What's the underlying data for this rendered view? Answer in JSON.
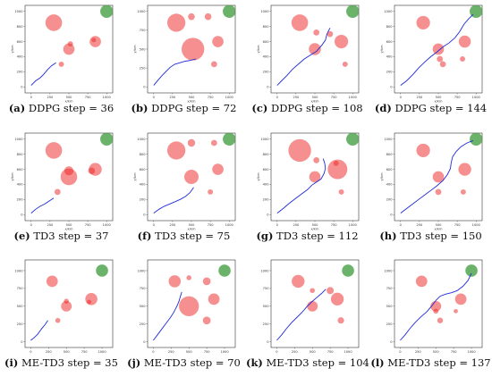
{
  "chart_data": [
    {
      "type": "scatter",
      "caption_tag": "(a)",
      "caption_text": "DDPG step = 36",
      "xlabel": "x/km",
      "ylabel": "y/km",
      "xticks": [
        0,
        250,
        500,
        750,
        1000
      ],
      "yticks": [
        0,
        200,
        400,
        600,
        800,
        1000
      ],
      "xlim": [
        -80,
        1080
      ],
      "ylim": [
        -80,
        1080
      ],
      "goal": {
        "x": 1000,
        "y": 1000,
        "r": 85
      },
      "obstacles": [
        {
          "x": 300,
          "y": 850,
          "r": 110
        },
        {
          "x": 500,
          "y": 500,
          "r": 75
        },
        {
          "x": 520,
          "y": 570,
          "r": 35
        },
        {
          "x": 850,
          "y": 600,
          "r": 75
        },
        {
          "x": 830,
          "y": 620,
          "r": 30
        },
        {
          "x": 400,
          "y": 300,
          "r": 35
        }
      ],
      "path": [
        [
          0,
          20
        ],
        [
          60,
          80
        ],
        [
          120,
          120
        ],
        [
          170,
          170
        ],
        [
          220,
          230
        ],
        [
          270,
          280
        ],
        [
          330,
          320
        ]
      ]
    },
    {
      "type": "scatter",
      "caption_tag": "(b)",
      "caption_text": "DDPG step = 72",
      "xlabel": "x/km",
      "ylabel": "y/km",
      "xticks": [
        0,
        250,
        500,
        750,
        1000
      ],
      "yticks": [
        0,
        250,
        500,
        750,
        1000
      ],
      "xlim": [
        -80,
        1080
      ],
      "ylim": [
        -80,
        1080
      ],
      "goal": {
        "x": 1000,
        "y": 1000,
        "r": 85
      },
      "obstacles": [
        {
          "x": 300,
          "y": 850,
          "r": 120
        },
        {
          "x": 500,
          "y": 930,
          "r": 45
        },
        {
          "x": 720,
          "y": 930,
          "r": 45
        },
        {
          "x": 520,
          "y": 500,
          "r": 150
        },
        {
          "x": 850,
          "y": 600,
          "r": 75
        },
        {
          "x": 800,
          "y": 300,
          "r": 40
        }
      ],
      "path": [
        [
          0,
          20
        ],
        [
          60,
          90
        ],
        [
          110,
          150
        ],
        [
          160,
          200
        ],
        [
          220,
          260
        ],
        [
          280,
          300
        ],
        [
          350,
          320
        ],
        [
          420,
          340
        ],
        [
          480,
          350
        ],
        [
          560,
          370
        ]
      ]
    },
    {
      "type": "scatter",
      "caption_tag": "(c)",
      "caption_text": "DDPG step = 108",
      "xlabel": "x/km",
      "ylabel": "y/km",
      "xticks": [
        0,
        250,
        500,
        750,
        1000
      ],
      "yticks": [
        0,
        200,
        400,
        600,
        800,
        1000
      ],
      "xlim": [
        -80,
        1080
      ],
      "ylim": [
        -80,
        1080
      ],
      "goal": {
        "x": 1000,
        "y": 1000,
        "r": 85
      },
      "obstacles": [
        {
          "x": 300,
          "y": 850,
          "r": 110
        },
        {
          "x": 520,
          "y": 720,
          "r": 40
        },
        {
          "x": 500,
          "y": 500,
          "r": 80
        },
        {
          "x": 850,
          "y": 600,
          "r": 90
        },
        {
          "x": 700,
          "y": 700,
          "r": 40
        },
        {
          "x": 900,
          "y": 300,
          "r": 35
        }
      ],
      "path": [
        [
          0,
          20
        ],
        [
          60,
          80
        ],
        [
          130,
          150
        ],
        [
          200,
          230
        ],
        [
          280,
          300
        ],
        [
          360,
          370
        ],
        [
          440,
          420
        ],
        [
          520,
          470
        ],
        [
          590,
          550
        ],
        [
          640,
          620
        ],
        [
          660,
          700
        ],
        [
          700,
          780
        ]
      ]
    },
    {
      "type": "scatter",
      "caption_tag": "(d)",
      "caption_text": "DDPG step = 144",
      "xlabel": "x/km",
      "ylabel": "y/km",
      "xticks": [
        0,
        250,
        500,
        750,
        1000
      ],
      "yticks": [
        0,
        200,
        400,
        600,
        800,
        1000
      ],
      "xlim": [
        -80,
        1080
      ],
      "ylim": [
        -80,
        1080
      ],
      "goal": {
        "x": 1000,
        "y": 1000,
        "r": 85
      },
      "obstacles": [
        {
          "x": 300,
          "y": 850,
          "r": 90
        },
        {
          "x": 500,
          "y": 500,
          "r": 75
        },
        {
          "x": 520,
          "y": 370,
          "r": 40
        },
        {
          "x": 850,
          "y": 600,
          "r": 80
        },
        {
          "x": 560,
          "y": 300,
          "r": 40
        },
        {
          "x": 820,
          "y": 370,
          "r": 35
        }
      ],
      "path": [
        [
          0,
          20
        ],
        [
          80,
          80
        ],
        [
          160,
          160
        ],
        [
          240,
          250
        ],
        [
          320,
          330
        ],
        [
          400,
          400
        ],
        [
          480,
          460
        ],
        [
          560,
          530
        ],
        [
          640,
          580
        ],
        [
          720,
          650
        ],
        [
          780,
          730
        ],
        [
          840,
          830
        ],
        [
          900,
          900
        ],
        [
          960,
          960
        ]
      ]
    },
    {
      "type": "scatter",
      "caption_tag": "(e)",
      "caption_text": "TD3 step = 37",
      "xlabel": "x/km",
      "ylabel": "y/km",
      "xticks": [
        0,
        250,
        500,
        750,
        1000
      ],
      "yticks": [
        0,
        200,
        400,
        600,
        800,
        1000
      ],
      "xlim": [
        -80,
        1080
      ],
      "ylim": [
        -80,
        1080
      ],
      "goal": {
        "x": 1000,
        "y": 1000,
        "r": 85
      },
      "obstacles": [
        {
          "x": 300,
          "y": 850,
          "r": 110
        },
        {
          "x": 500,
          "y": 500,
          "r": 110
        },
        {
          "x": 500,
          "y": 580,
          "r": 60
        },
        {
          "x": 850,
          "y": 600,
          "r": 85
        },
        {
          "x": 800,
          "y": 580,
          "r": 45
        },
        {
          "x": 350,
          "y": 300,
          "r": 40
        }
      ],
      "path": [
        [
          0,
          20
        ],
        [
          60,
          70
        ],
        [
          120,
          110
        ],
        [
          180,
          140
        ],
        [
          240,
          180
        ],
        [
          300,
          220
        ]
      ]
    },
    {
      "type": "scatter",
      "caption_tag": "(f)",
      "caption_text": "TD3 step = 75",
      "xlabel": "x/km",
      "ylabel": "y/km",
      "xticks": [
        0,
        250,
        500,
        750,
        1000
      ],
      "yticks": [
        0,
        200,
        400,
        600,
        800,
        1000
      ],
      "xlim": [
        -80,
        1080
      ],
      "ylim": [
        -80,
        1080
      ],
      "goal": {
        "x": 1000,
        "y": 1000,
        "r": 85
      },
      "obstacles": [
        {
          "x": 300,
          "y": 850,
          "r": 120
        },
        {
          "x": 500,
          "y": 950,
          "r": 50
        },
        {
          "x": 800,
          "y": 950,
          "r": 40
        },
        {
          "x": 500,
          "y": 500,
          "r": 95
        },
        {
          "x": 850,
          "y": 600,
          "r": 75
        },
        {
          "x": 750,
          "y": 300,
          "r": 35
        }
      ],
      "path": [
        [
          0,
          20
        ],
        [
          70,
          70
        ],
        [
          140,
          110
        ],
        [
          210,
          140
        ],
        [
          280,
          170
        ],
        [
          350,
          200
        ],
        [
          420,
          240
        ],
        [
          480,
          290
        ],
        [
          530,
          360
        ]
      ]
    },
    {
      "type": "scatter",
      "caption_tag": "(g)",
      "caption_text": "TD3 step = 112",
      "xlabel": "x/km",
      "ylabel": "y/km",
      "xticks": [
        0,
        250,
        500,
        750,
        1000
      ],
      "yticks": [
        0,
        200,
        400,
        600,
        800,
        1000
      ],
      "xlim": [
        -80,
        1080
      ],
      "ylim": [
        -80,
        1080
      ],
      "goal": {
        "x": 1000,
        "y": 1000,
        "r": 85
      },
      "obstacles": [
        {
          "x": 300,
          "y": 850,
          "r": 150
        },
        {
          "x": 500,
          "y": 500,
          "r": 75
        },
        {
          "x": 520,
          "y": 720,
          "r": 40
        },
        {
          "x": 800,
          "y": 600,
          "r": 130
        },
        {
          "x": 780,
          "y": 680,
          "r": 35
        },
        {
          "x": 850,
          "y": 300,
          "r": 35
        }
      ],
      "path": [
        [
          0,
          20
        ],
        [
          80,
          80
        ],
        [
          160,
          150
        ],
        [
          240,
          210
        ],
        [
          320,
          270
        ],
        [
          400,
          330
        ],
        [
          460,
          390
        ],
        [
          520,
          430
        ],
        [
          580,
          470
        ],
        [
          620,
          540
        ],
        [
          640,
          610
        ],
        [
          630,
          680
        ],
        [
          610,
          740
        ]
      ]
    },
    {
      "type": "scatter",
      "caption_tag": "(h)",
      "caption_text": "TD3 step = 150",
      "xlabel": "x/km",
      "ylabel": "y/km",
      "xticks": [
        0,
        250,
        500,
        750,
        1000
      ],
      "yticks": [
        0,
        200,
        400,
        600,
        800,
        1000
      ],
      "xlim": [
        -80,
        1080
      ],
      "ylim": [
        -80,
        1080
      ],
      "goal": {
        "x": 1000,
        "y": 1000,
        "r": 85
      },
      "obstacles": [
        {
          "x": 300,
          "y": 850,
          "r": 90
        },
        {
          "x": 500,
          "y": 500,
          "r": 75
        },
        {
          "x": 500,
          "y": 300,
          "r": 40
        },
        {
          "x": 850,
          "y": 600,
          "r": 85
        },
        {
          "x": 830,
          "y": 300,
          "r": 35
        }
      ],
      "path": [
        [
          0,
          20
        ],
        [
          80,
          80
        ],
        [
          160,
          140
        ],
        [
          240,
          200
        ],
        [
          320,
          260
        ],
        [
          400,
          320
        ],
        [
          480,
          380
        ],
        [
          560,
          450
        ],
        [
          620,
          530
        ],
        [
          660,
          610
        ],
        [
          670,
          690
        ],
        [
          690,
          770
        ],
        [
          740,
          840
        ],
        [
          800,
          900
        ],
        [
          880,
          950
        ],
        [
          960,
          980
        ]
      ]
    },
    {
      "type": "scatter",
      "caption_tag": "(i)",
      "caption_text": "ME-TD3 step = 35",
      "xlabel": "",
      "ylabel": "",
      "xticks": [
        0,
        250,
        500,
        750,
        1000
      ],
      "yticks": [
        0,
        250,
        500,
        750,
        1000
      ],
      "xlim": [
        -80,
        1150
      ],
      "ylim": [
        -80,
        1150
      ],
      "goal": {
        "x": 1000,
        "y": 1000,
        "r": 85
      },
      "obstacles": [
        {
          "x": 300,
          "y": 850,
          "r": 80
        },
        {
          "x": 500,
          "y": 500,
          "r": 75
        },
        {
          "x": 500,
          "y": 570,
          "r": 35
        },
        {
          "x": 850,
          "y": 600,
          "r": 85
        },
        {
          "x": 820,
          "y": 560,
          "r": 30
        },
        {
          "x": 380,
          "y": 300,
          "r": 35
        }
      ],
      "path": [
        [
          0,
          20
        ],
        [
          50,
          60
        ],
        [
          100,
          110
        ],
        [
          150,
          180
        ],
        [
          200,
          240
        ],
        [
          240,
          300
        ]
      ]
    },
    {
      "type": "scatter",
      "caption_tag": "(j)",
      "caption_text": "ME-TD3 step = 70",
      "xlabel": "",
      "ylabel": "",
      "xticks": [
        0,
        250,
        500,
        750,
        1000
      ],
      "yticks": [
        0,
        250,
        500,
        750,
        1000
      ],
      "xlim": [
        -80,
        1150
      ],
      "ylim": [
        -80,
        1150
      ],
      "goal": {
        "x": 1000,
        "y": 1000,
        "r": 85
      },
      "obstacles": [
        {
          "x": 300,
          "y": 850,
          "r": 85
        },
        {
          "x": 500,
          "y": 900,
          "r": 35
        },
        {
          "x": 750,
          "y": 850,
          "r": 55
        },
        {
          "x": 500,
          "y": 500,
          "r": 140
        },
        {
          "x": 850,
          "y": 600,
          "r": 80
        },
        {
          "x": 750,
          "y": 300,
          "r": 55
        }
      ],
      "path": [
        [
          0,
          20
        ],
        [
          60,
          100
        ],
        [
          120,
          180
        ],
        [
          180,
          260
        ],
        [
          240,
          340
        ],
        [
          290,
          420
        ],
        [
          330,
          500
        ],
        [
          360,
          570
        ],
        [
          380,
          640
        ],
        [
          400,
          700
        ]
      ]
    },
    {
      "type": "scatter",
      "caption_tag": "(k)",
      "caption_text": "ME-TD3 step = 104",
      "xlabel": "",
      "ylabel": "",
      "xticks": [
        0,
        250,
        500,
        750,
        1000
      ],
      "yticks": [
        0,
        250,
        500,
        750,
        1000
      ],
      "xlim": [
        -80,
        1150
      ],
      "ylim": [
        -80,
        1150
      ],
      "goal": {
        "x": 1000,
        "y": 1000,
        "r": 85
      },
      "obstacles": [
        {
          "x": 300,
          "y": 850,
          "r": 90
        },
        {
          "x": 500,
          "y": 720,
          "r": 35
        },
        {
          "x": 500,
          "y": 500,
          "r": 75
        },
        {
          "x": 850,
          "y": 600,
          "r": 90
        },
        {
          "x": 750,
          "y": 720,
          "r": 50
        },
        {
          "x": 900,
          "y": 300,
          "r": 45
        }
      ],
      "path": [
        [
          0,
          20
        ],
        [
          70,
          100
        ],
        [
          140,
          190
        ],
        [
          210,
          270
        ],
        [
          280,
          340
        ],
        [
          350,
          410
        ],
        [
          420,
          490
        ],
        [
          490,
          560
        ],
        [
          560,
          620
        ],
        [
          630,
          680
        ],
        [
          690,
          740
        ]
      ]
    },
    {
      "type": "scatter",
      "caption_tag": "(l)",
      "caption_text": "ME-TD3 step = 137",
      "xlabel": "",
      "ylabel": "",
      "xticks": [
        0,
        250,
        500,
        750,
        1000
      ],
      "yticks": [
        0,
        250,
        500,
        750,
        1000
      ],
      "xlim": [
        -80,
        1150
      ],
      "ylim": [
        -80,
        1150
      ],
      "goal": {
        "x": 1000,
        "y": 1000,
        "r": 85
      },
      "obstacles": [
        {
          "x": 300,
          "y": 850,
          "r": 80
        },
        {
          "x": 500,
          "y": 500,
          "r": 75
        },
        {
          "x": 500,
          "y": 430,
          "r": 35
        },
        {
          "x": 850,
          "y": 600,
          "r": 80
        },
        {
          "x": 560,
          "y": 300,
          "r": 40
        },
        {
          "x": 780,
          "y": 430,
          "r": 30
        }
      ],
      "path": [
        [
          0,
          20
        ],
        [
          70,
          100
        ],
        [
          140,
          190
        ],
        [
          210,
          270
        ],
        [
          290,
          350
        ],
        [
          370,
          420
        ],
        [
          440,
          500
        ],
        [
          500,
          580
        ],
        [
          560,
          640
        ],
        [
          640,
          670
        ],
        [
          720,
          690
        ],
        [
          800,
          720
        ],
        [
          880,
          780
        ],
        [
          950,
          860
        ],
        [
          1000,
          960
        ]
      ]
    }
  ]
}
